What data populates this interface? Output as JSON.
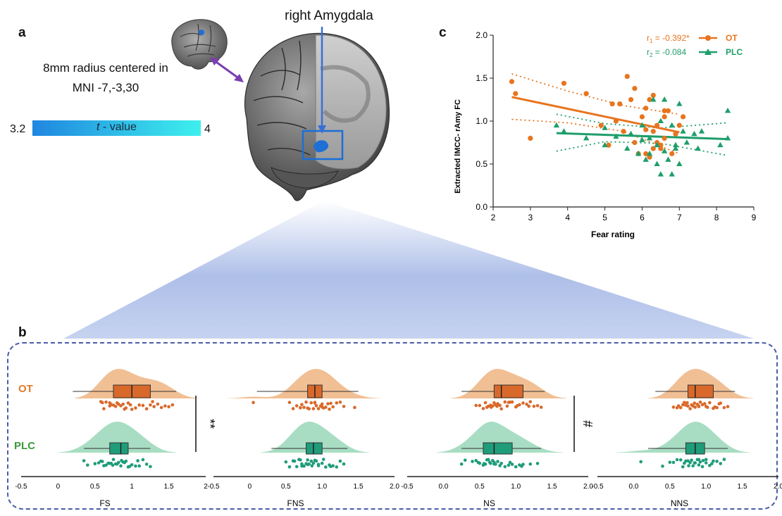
{
  "panel_a": {
    "letter": "a",
    "region_title": "right Amygdala",
    "seed_line1": "8mm radius centered in",
    "seed_line2": "MNI -7,-3,30",
    "colorbar": {
      "min_label": "3.2",
      "max_label": "4",
      "title_italic": "t",
      "title_rest": " - value",
      "color_low": "#1f86e0",
      "color_high": "#3ef0ee"
    },
    "arrow_color": "#7a3fb0",
    "roi_color": "#1a6fd8"
  },
  "panel_b": {
    "letter": "b",
    "row_labels": [
      "OT",
      "PLC"
    ],
    "row_colors": {
      "OT": "#e07b2e",
      "PLC": "#2e9c6e"
    },
    "fill_colors": {
      "OT": "#f0b888",
      "PLC": "#9ed9bd"
    },
    "box_colors": {
      "OT": "#d9692a",
      "PLC": "#1f9c7a"
    },
    "significance": [
      {
        "panel": "FS",
        "text": "**"
      },
      {
        "panel": "NS",
        "text": "#"
      }
    ],
    "frame_color": "#4a5da8"
  },
  "chart_data": [
    {
      "type": "scatter",
      "panel": "c",
      "xlabel": "Fear rating",
      "ylabel": "Extracted lMCC- rAmy FC",
      "xlim": [
        2,
        9
      ],
      "ylim": [
        0.0,
        2.0
      ],
      "xticks": [
        "2",
        "3",
        "4",
        "5",
        "6",
        "7",
        "8",
        "9"
      ],
      "yticks": [
        "0.0",
        "0.5",
        "1.0",
        "1.5",
        "2.0"
      ],
      "legend_position": "top-right",
      "series": [
        {
          "name": "OT",
          "stat_label": "r1 = -0.392*",
          "stat_base": "r",
          "stat_sub": "1",
          "stat_rest": " = -0.392*",
          "color": "#e8741e",
          "marker": "circle",
          "points": [
            [
              2.5,
              1.46
            ],
            [
              2.6,
              1.32
            ],
            [
              3.0,
              0.8
            ],
            [
              3.9,
              1.44
            ],
            [
              4.5,
              1.32
            ],
            [
              4.9,
              0.95
            ],
            [
              5.1,
              0.72
            ],
            [
              5.2,
              1.2
            ],
            [
              5.3,
              1.0
            ],
            [
              5.4,
              1.2
            ],
            [
              5.5,
              0.88
            ],
            [
              5.6,
              1.52
            ],
            [
              5.7,
              1.25
            ],
            [
              5.8,
              0.75
            ],
            [
              5.8,
              1.38
            ],
            [
              5.9,
              0.62
            ],
            [
              6.0,
              1.05
            ],
            [
              6.1,
              0.62
            ],
            [
              6.1,
              0.9
            ],
            [
              6.1,
              1.15
            ],
            [
              6.2,
              1.25
            ],
            [
              6.2,
              0.58
            ],
            [
              6.3,
              0.68
            ],
            [
              6.3,
              1.3
            ],
            [
              6.4,
              0.75
            ],
            [
              6.4,
              0.95
            ],
            [
              6.5,
              0.68
            ],
            [
              6.6,
              0.8
            ],
            [
              6.6,
              1.05
            ],
            [
              6.6,
              1.12
            ],
            [
              6.7,
              1.12
            ],
            [
              6.8,
              0.62
            ],
            [
              6.9,
              0.85
            ],
            [
              7.0,
              0.95
            ],
            [
              7.1,
              1.05
            ],
            [
              6.5,
              0.72
            ],
            [
              6.3,
              0.88
            ]
          ],
          "fit": {
            "x": [
              2.5,
              7.0
            ],
            "y": [
              1.28,
              0.87
            ]
          },
          "ci_upper": {
            "x": [
              2.5,
              4.0,
              5.5,
              7.0
            ],
            "y": [
              1.55,
              1.35,
              1.18,
              1.08
            ]
          },
          "ci_lower": {
            "x": [
              2.5,
              4.0,
              5.5,
              7.0
            ],
            "y": [
              1.02,
              0.98,
              0.88,
              0.62
            ]
          }
        },
        {
          "name": "PLC",
          "stat_label": "r2 = -0.084",
          "stat_base": "r",
          "stat_sub": "2",
          "stat_rest": " = -0.084",
          "color": "#1e9e6a",
          "marker": "triangle",
          "points": [
            [
              3.7,
              0.95
            ],
            [
              3.9,
              0.88
            ],
            [
              4.5,
              0.8
            ],
            [
              5.0,
              0.72
            ],
            [
              5.0,
              0.92
            ],
            [
              5.3,
              0.82
            ],
            [
              5.6,
              0.68
            ],
            [
              5.7,
              0.85
            ],
            [
              5.9,
              0.62
            ],
            [
              6.0,
              0.78
            ],
            [
              6.0,
              0.95
            ],
            [
              6.1,
              0.55
            ],
            [
              6.2,
              0.62
            ],
            [
              6.2,
              0.8
            ],
            [
              6.3,
              1.25
            ],
            [
              6.4,
              0.72
            ],
            [
              6.4,
              0.5
            ],
            [
              6.5,
              0.38
            ],
            [
              6.6,
              0.65
            ],
            [
              6.6,
              1.25
            ],
            [
              6.7,
              0.55
            ],
            [
              6.8,
              0.38
            ],
            [
              6.8,
              0.95
            ],
            [
              6.9,
              0.72
            ],
            [
              6.9,
              0.68
            ],
            [
              7.0,
              1.2
            ],
            [
              7.1,
              0.88
            ],
            [
              7.2,
              0.75
            ],
            [
              7.4,
              0.85
            ],
            [
              7.5,
              0.68
            ],
            [
              7.6,
              0.88
            ],
            [
              8.1,
              0.72
            ],
            [
              8.3,
              1.12
            ],
            [
              8.3,
              0.8
            ],
            [
              6.5,
              1.0
            ],
            [
              7.0,
              0.5
            ]
          ],
          "fit": {
            "x": [
              3.7,
              8.3
            ],
            "y": [
              0.86,
              0.79
            ]
          },
          "ci_upper": {
            "x": [
              3.7,
              5.0,
              6.5,
              8.3
            ],
            "y": [
              1.08,
              0.97,
              0.92,
              0.98
            ]
          },
          "ci_lower": {
            "x": [
              3.7,
              5.0,
              6.5,
              8.3
            ],
            "y": [
              0.65,
              0.76,
              0.74,
              0.6
            ]
          }
        }
      ]
    },
    {
      "type": "raincloud",
      "panel": "b",
      "subplots": [
        {
          "xlabel": "FS",
          "xlim": [
            -0.5,
            2.0
          ],
          "xticks": [
            "-0.5",
            "0",
            "0.5",
            "1",
            "1.5",
            "2"
          ],
          "groups": [
            {
              "name": "OT",
              "q1": 0.75,
              "median": 1.0,
              "q3": 1.25,
              "whisker_low": 0.2,
              "whisker_high": 1.6,
              "points": [
                0.58,
                0.62,
                0.65,
                0.7,
                0.72,
                0.75,
                0.78,
                0.8,
                0.82,
                0.85,
                0.9,
                0.92,
                0.95,
                1.0,
                1.05,
                1.1,
                1.2,
                1.25,
                1.3,
                1.35,
                1.4,
                1.45,
                1.5,
                1.55,
                0.6,
                0.88,
                1.15,
                1.28,
                0.7,
                0.98
              ]
            },
            {
              "name": "PLC",
              "q1": 0.7,
              "median": 0.85,
              "q3": 0.95,
              "whisker_low": 0.35,
              "whisker_high": 1.25,
              "points": [
                0.35,
                0.4,
                0.5,
                0.55,
                0.6,
                0.62,
                0.65,
                0.68,
                0.7,
                0.72,
                0.75,
                0.78,
                0.8,
                0.82,
                0.85,
                0.88,
                0.9,
                0.92,
                0.95,
                1.0,
                1.05,
                1.1,
                1.15,
                1.2,
                1.25,
                0.58,
                0.74,
                0.86,
                0.97,
                1.08
              ]
            }
          ]
        },
        {
          "xlabel": "FNS",
          "xlim": [
            -0.5,
            2.0
          ],
          "xticks": [
            "-0.5",
            "0",
            "0.5",
            "1.0",
            "1.5",
            "2.0"
          ],
          "groups": [
            {
              "name": "OT",
              "q1": 0.8,
              "median": 0.9,
              "q3": 1.0,
              "whisker_low": 0.1,
              "whisker_high": 1.5,
              "points": [
                0.05,
                0.55,
                0.6,
                0.65,
                0.7,
                0.72,
                0.75,
                0.78,
                0.8,
                0.82,
                0.85,
                0.88,
                0.9,
                0.92,
                0.95,
                0.98,
                1.0,
                1.02,
                1.05,
                1.1,
                1.12,
                1.15,
                1.2,
                1.25,
                1.3,
                1.45,
                0.7,
                0.9,
                1.0,
                1.08
              ]
            },
            {
              "name": "PLC",
              "q1": 0.78,
              "median": 0.88,
              "q3": 1.0,
              "whisker_low": 0.3,
              "whisker_high": 1.35,
              "points": [
                0.5,
                0.55,
                0.6,
                0.62,
                0.68,
                0.7,
                0.72,
                0.75,
                0.78,
                0.8,
                0.82,
                0.85,
                0.88,
                0.9,
                0.92,
                0.95,
                1.0,
                1.05,
                1.1,
                1.15,
                1.2,
                1.25,
                1.3,
                0.65,
                0.8,
                0.95,
                1.02,
                1.12,
                0.72,
                0.86
              ]
            }
          ]
        },
        {
          "xlabel": "NS",
          "xlim": [
            -0.5,
            2.0
          ],
          "xticks": [
            "-0.5",
            "0.0",
            "0.5",
            "1.0",
            "1.5",
            "2.0"
          ],
          "groups": [
            {
              "name": "OT",
              "q1": 0.7,
              "median": 0.8,
              "q3": 1.1,
              "whisker_low": 0.25,
              "whisker_high": 1.4,
              "points": [
                0.45,
                0.5,
                0.55,
                0.6,
                0.62,
                0.65,
                0.68,
                0.7,
                0.72,
                0.75,
                0.78,
                0.8,
                0.85,
                0.9,
                0.95,
                1.0,
                1.05,
                1.1,
                1.15,
                1.2,
                1.25,
                1.3,
                1.35,
                0.58,
                0.74,
                0.88,
                1.02,
                1.18,
                0.66,
                0.92
              ]
            },
            {
              "name": "PLC",
              "q1": 0.55,
              "median": 0.7,
              "q3": 0.95,
              "whisker_low": 0.25,
              "whisker_high": 1.35,
              "points": [
                0.25,
                0.3,
                0.4,
                0.45,
                0.5,
                0.55,
                0.58,
                0.6,
                0.62,
                0.65,
                0.68,
                0.7,
                0.72,
                0.75,
                0.8,
                0.85,
                0.9,
                0.95,
                1.0,
                1.05,
                1.1,
                1.2,
                1.3,
                0.48,
                0.64,
                0.78,
                0.92,
                1.08,
                0.56,
                0.7
              ]
            }
          ]
        },
        {
          "xlabel": "NNS",
          "xlim": [
            -0.5,
            2.0
          ],
          "xticks": [
            "-0.5",
            "0.0",
            "0.5",
            "1.0",
            "1.5",
            "2.0"
          ],
          "groups": [
            {
              "name": "OT",
              "q1": 0.75,
              "median": 0.85,
              "q3": 1.1,
              "whisker_low": 0.3,
              "whisker_high": 1.4,
              "points": [
                0.55,
                0.6,
                0.65,
                0.7,
                0.72,
                0.75,
                0.78,
                0.8,
                0.82,
                0.85,
                0.88,
                0.9,
                0.92,
                0.95,
                1.0,
                1.05,
                1.1,
                1.15,
                1.2,
                1.25,
                1.3,
                0.68,
                0.84,
                0.98,
                1.12,
                0.74,
                0.9,
                1.02,
                0.62,
                1.18
              ]
            },
            {
              "name": "PLC",
              "q1": 0.72,
              "median": 0.85,
              "q3": 0.98,
              "whisker_low": 0.2,
              "whisker_high": 1.3,
              "points": [
                0.1,
                0.4,
                0.5,
                0.55,
                0.6,
                0.65,
                0.7,
                0.72,
                0.75,
                0.78,
                0.8,
                0.82,
                0.85,
                0.88,
                0.9,
                0.92,
                0.95,
                1.0,
                1.05,
                1.1,
                1.15,
                1.2,
                1.25,
                0.68,
                0.84,
                0.96,
                1.08,
                0.76,
                0.9,
                1.0
              ]
            }
          ]
        }
      ]
    }
  ]
}
